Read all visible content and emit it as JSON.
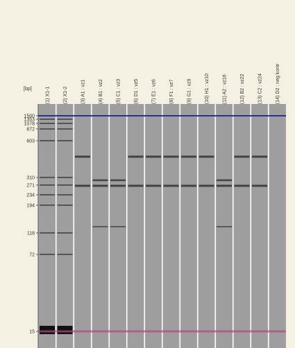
{
  "axis_label": "[bp]",
  "size_labels": [
    "1500",
    "1353",
    "1078",
    "872",
    "603",
    "310",
    "271",
    "234",
    "194",
    "118",
    "72",
    "15"
  ],
  "lanes": [
    "(1) X1-1",
    "(2) X1-2",
    "(3) A1 : vz1",
    "(4) B1 : vz2",
    "(5) C1 : vz3",
    "(6) D1 : vz5",
    "(7) E1 : vz6",
    "(8) F1 : vz7",
    "(9) G1 : vz9",
    "(10) H1 : vz10",
    "(11) A2 : vz16",
    "(12) B2 : vz22",
    "(13) C2 : vz24",
    "(14) D2 : neg kontr"
  ]
}
